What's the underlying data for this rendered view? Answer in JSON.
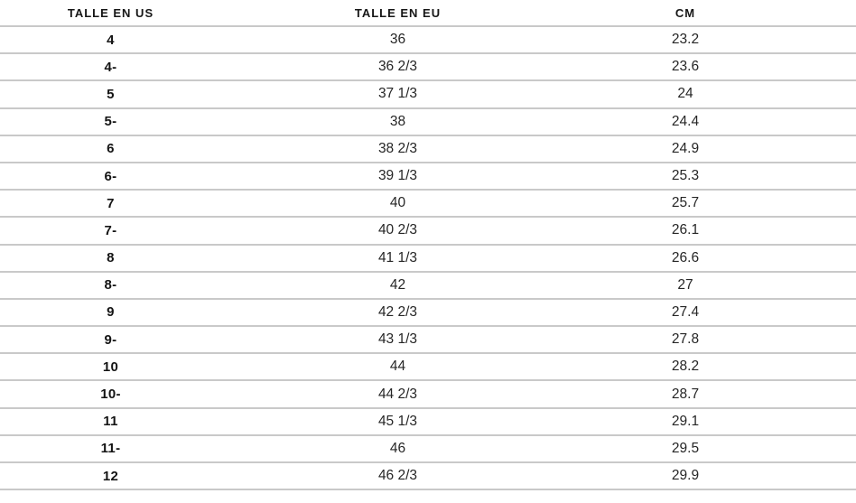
{
  "chart_data": {
    "type": "table",
    "title": "",
    "columns": [
      "TALLE EN US",
      "TALLE EN EU",
      "CM"
    ],
    "rows": [
      [
        "4",
        "36",
        "23.2"
      ],
      [
        "4-",
        "36 2/3",
        "23.6"
      ],
      [
        "5",
        "37 1/3",
        "24"
      ],
      [
        "5-",
        "38",
        "24.4"
      ],
      [
        "6",
        "38 2/3",
        "24.9"
      ],
      [
        "6-",
        "39 1/3",
        "25.3"
      ],
      [
        "7",
        "40",
        "25.7"
      ],
      [
        "7-",
        "40 2/3",
        "26.1"
      ],
      [
        "8",
        "41 1/3",
        "26.6"
      ],
      [
        "8-",
        "42",
        "27"
      ],
      [
        "9",
        "42 2/3",
        "27.4"
      ],
      [
        "9-",
        "43 1/3",
        "27.8"
      ],
      [
        "10",
        "44",
        "28.2"
      ],
      [
        "10-",
        "44 2/3",
        "28.7"
      ],
      [
        "11",
        "45 1/3",
        "29.1"
      ],
      [
        "11-",
        "46",
        "29.5"
      ],
      [
        "12",
        "46 2/3",
        "29.9"
      ]
    ]
  },
  "colors": {
    "background": "#ffffff",
    "border": "#c9c9c9",
    "header_text": "#161616",
    "cell_text": "#262626",
    "bold_cell_text": "#141414"
  }
}
